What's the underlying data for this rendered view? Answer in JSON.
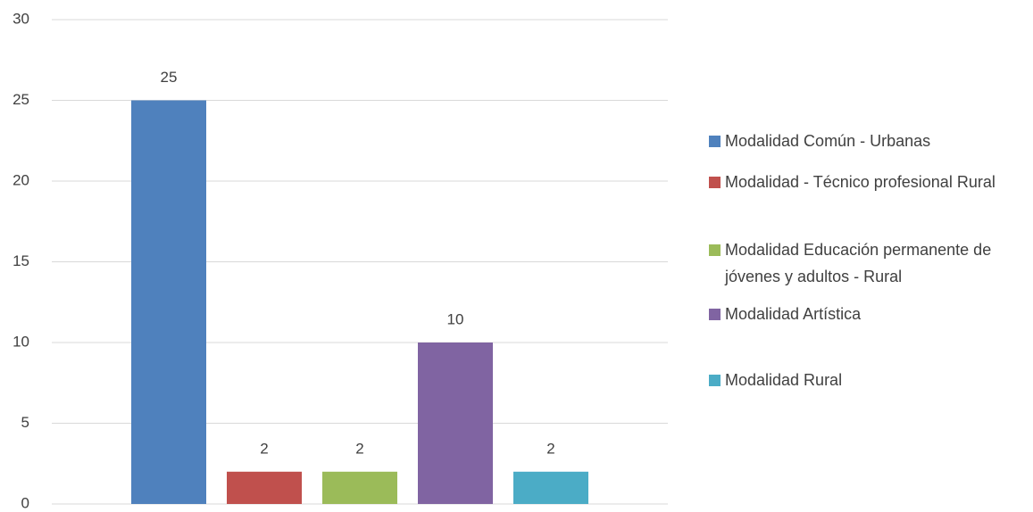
{
  "chart_data": {
    "type": "bar",
    "categories": [
      null
    ],
    "series": [
      {
        "name": "Modalidad Común - Urbanas",
        "color": "#4f81bd",
        "values": [
          25
        ]
      },
      {
        "name": "Modalidad - Técnico profesional Rural",
        "color": "#c0504d",
        "values": [
          2
        ]
      },
      {
        "name": "Modalidad Educación permanente de jóvenes y adultos - Rural",
        "color": "#9bbb59",
        "values": [
          2
        ]
      },
      {
        "name": "Modalidad Artística",
        "color": "#8064a2",
        "values": [
          10
        ]
      },
      {
        "name": "Modalidad Rural",
        "color": "#4bacc6",
        "values": [
          2
        ]
      }
    ],
    "ylim": [
      0,
      30
    ],
    "yticks": [
      0,
      5,
      10,
      15,
      20,
      25,
      30
    ],
    "grid": true,
    "legend": "right"
  }
}
